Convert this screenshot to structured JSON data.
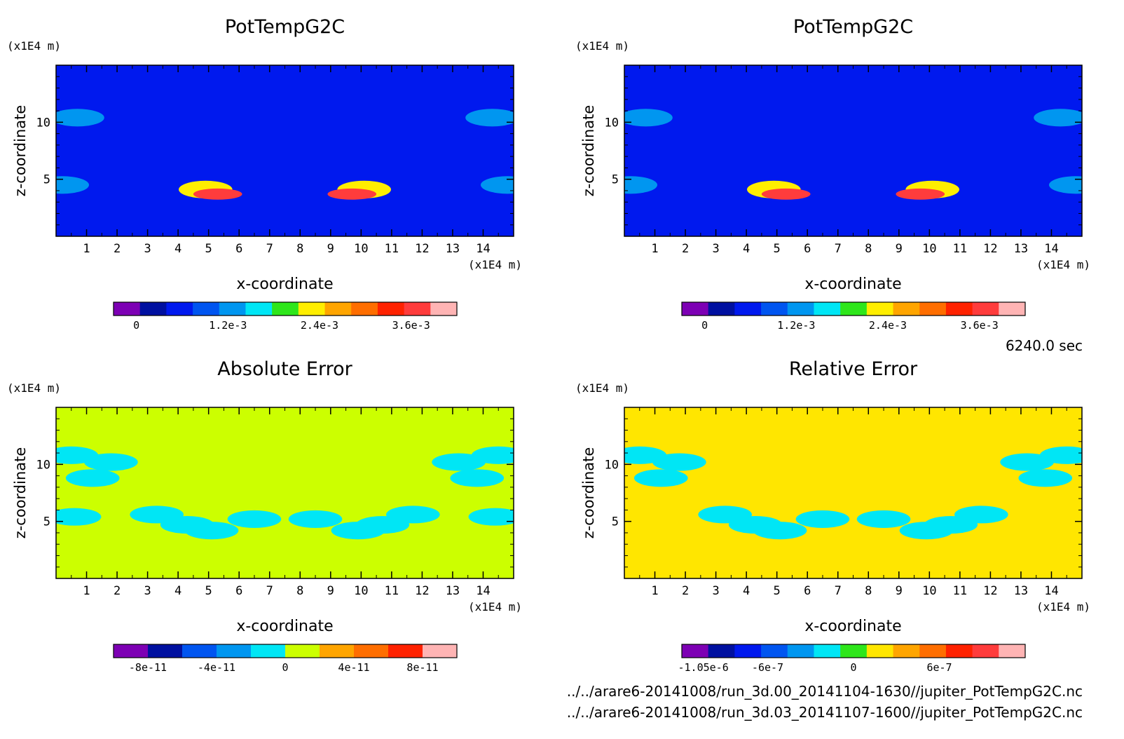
{
  "time_label": "6240.0 sec",
  "files": [
    "../../arare6-20141008/run_3d.00_20141104-1630//jupiter_PotTempG2C.nc",
    "../../arare6-20141008/run_3d.03_20141107-1600//jupiter_PotTempG2C.nc"
  ],
  "chart_data": [
    {
      "type": "heatmap",
      "title": "PotTempG2C",
      "xlabel": "x-coordinate",
      "ylabel": "z-coordinate",
      "x_unit": "(x1E4 m)",
      "y_unit": "(x1E4 m)",
      "xlim": [
        0,
        15
      ],
      "ylim": [
        0,
        15
      ],
      "xticks": [
        1,
        2,
        3,
        4,
        5,
        6,
        7,
        8,
        9,
        10,
        11,
        12,
        13,
        14
      ],
      "yticks": [
        5,
        10
      ],
      "background_color": "#0019ee",
      "blobs": [
        {
          "x": 0.7,
          "z": 10.4,
          "value": 0.0012
        },
        {
          "x": 0.2,
          "z": 4.5,
          "value": 0.0013
        },
        {
          "x": 4.9,
          "z": 4.1,
          "value": 0.0022
        },
        {
          "x": 5.3,
          "z": 3.7,
          "value": 0.0038
        },
        {
          "x": 10.1,
          "z": 4.1,
          "value": 0.0022
        },
        {
          "x": 9.7,
          "z": 3.7,
          "value": 0.0038
        },
        {
          "x": 14.3,
          "z": 10.4,
          "value": 0.0012
        },
        {
          "x": 14.8,
          "z": 4.5,
          "value": 0.0013
        }
      ],
      "colorbar": {
        "colors": [
          "#7d00b4",
          "#0010a0",
          "#0019ee",
          "#0055f0",
          "#0096f0",
          "#00e6f5",
          "#2ee61b",
          "#ffee00",
          "#ffa500",
          "#ff6e00",
          "#ff2200",
          "#ff3c3c",
          "#ffb4b4"
        ],
        "labels": [
          "0",
          "1.2e-3",
          "2.4e-3",
          "3.6e-3"
        ],
        "label_values": [
          0,
          0.0012,
          0.0024,
          0.0036
        ],
        "range": [
          -0.0003,
          0.0042
        ]
      }
    },
    {
      "type": "heatmap",
      "title": "PotTempG2C",
      "xlabel": "x-coordinate",
      "ylabel": "z-coordinate",
      "x_unit": "(x1E4 m)",
      "y_unit": "(x1E4 m)",
      "xlim": [
        0,
        15
      ],
      "ylim": [
        0,
        15
      ],
      "xticks": [
        1,
        2,
        3,
        4,
        5,
        6,
        7,
        8,
        9,
        10,
        11,
        12,
        13,
        14
      ],
      "yticks": [
        5,
        10
      ],
      "background_color": "#0019ee",
      "blobs": [
        {
          "x": 0.7,
          "z": 10.4,
          "value": 0.0012
        },
        {
          "x": 0.2,
          "z": 4.5,
          "value": 0.0013
        },
        {
          "x": 4.9,
          "z": 4.1,
          "value": 0.0022
        },
        {
          "x": 5.3,
          "z": 3.7,
          "value": 0.0038
        },
        {
          "x": 10.1,
          "z": 4.1,
          "value": 0.0022
        },
        {
          "x": 9.7,
          "z": 3.7,
          "value": 0.0038
        },
        {
          "x": 14.3,
          "z": 10.4,
          "value": 0.0012
        },
        {
          "x": 14.8,
          "z": 4.5,
          "value": 0.0013
        }
      ],
      "colorbar": {
        "colors": [
          "#7d00b4",
          "#0010a0",
          "#0019ee",
          "#0055f0",
          "#0096f0",
          "#00e6f5",
          "#2ee61b",
          "#ffee00",
          "#ffa500",
          "#ff6e00",
          "#ff2200",
          "#ff3c3c",
          "#ffb4b4"
        ],
        "labels": [
          "0",
          "1.2e-3",
          "2.4e-3",
          "3.6e-3"
        ],
        "label_values": [
          0,
          0.0012,
          0.0024,
          0.0036
        ],
        "range": [
          -0.0003,
          0.0042
        ]
      }
    },
    {
      "type": "heatmap",
      "title": "Absolute Error",
      "xlabel": "x-coordinate",
      "ylabel": "z-coordinate",
      "x_unit": "(x1E4 m)",
      "y_unit": "(x1E4 m)",
      "xlim": [
        0,
        15
      ],
      "ylim": [
        0,
        15
      ],
      "xticks": [
        1,
        2,
        3,
        4,
        5,
        6,
        7,
        8,
        9,
        10,
        11,
        12,
        13,
        14
      ],
      "yticks": [
        5,
        10
      ],
      "background_color": "#ccff00",
      "blobs": [
        {
          "x": 0.5,
          "z": 10.8,
          "value": -2e-11
        },
        {
          "x": 1.8,
          "z": 10.2,
          "value": -2e-11
        },
        {
          "x": 1.2,
          "z": 8.8,
          "value": -2e-11
        },
        {
          "x": 0.6,
          "z": 5.4,
          "value": -2e-11
        },
        {
          "x": 3.3,
          "z": 5.6,
          "value": -2e-11
        },
        {
          "x": 4.3,
          "z": 4.7,
          "value": -2e-11
        },
        {
          "x": 5.1,
          "z": 4.2,
          "value": -2e-11
        },
        {
          "x": 6.5,
          "z": 5.2,
          "value": -2e-11
        },
        {
          "x": 14.5,
          "z": 10.8,
          "value": -2e-11
        },
        {
          "x": 13.2,
          "z": 10.2,
          "value": -2e-11
        },
        {
          "x": 13.8,
          "z": 8.8,
          "value": -2e-11
        },
        {
          "x": 14.4,
          "z": 5.4,
          "value": -2e-11
        },
        {
          "x": 11.7,
          "z": 5.6,
          "value": -2e-11
        },
        {
          "x": 10.7,
          "z": 4.7,
          "value": -2e-11
        },
        {
          "x": 9.9,
          "z": 4.2,
          "value": -2e-11
        },
        {
          "x": 8.5,
          "z": 5.2,
          "value": -2e-11
        }
      ],
      "colorbar": {
        "colors": [
          "#7d00b4",
          "#0010a0",
          "#0055f0",
          "#0096f0",
          "#00e6f5",
          "#ccff00",
          "#ffa500",
          "#ff6e00",
          "#ff2200",
          "#ffb4b4"
        ],
        "labels": [
          "-8e-11",
          "-4e-11",
          "0",
          "4e-11",
          "8e-11"
        ],
        "label_values": [
          -8e-11,
          -4e-11,
          0,
          4e-11,
          8e-11
        ],
        "range": [
          -1e-10,
          1e-10
        ]
      }
    },
    {
      "type": "heatmap",
      "title": "Relative Error",
      "xlabel": "x-coordinate",
      "ylabel": "z-coordinate",
      "x_unit": "(x1E4 m)",
      "y_unit": "(x1E4 m)",
      "xlim": [
        0,
        15
      ],
      "ylim": [
        0,
        15
      ],
      "xticks": [
        1,
        2,
        3,
        4,
        5,
        6,
        7,
        8,
        9,
        10,
        11,
        12,
        13,
        14
      ],
      "yticks": [
        5,
        10
      ],
      "background_color": "#ffe600",
      "blobs": [
        {
          "x": 0.5,
          "z": 10.8,
          "value": -1e-07
        },
        {
          "x": 1.8,
          "z": 10.2,
          "value": -1e-07
        },
        {
          "x": 1.2,
          "z": 8.8,
          "value": -1e-07
        },
        {
          "x": 3.3,
          "z": 5.6,
          "value": -1e-07
        },
        {
          "x": 4.3,
          "z": 4.7,
          "value": -1e-07
        },
        {
          "x": 5.1,
          "z": 4.2,
          "value": -1e-07
        },
        {
          "x": 6.5,
          "z": 5.2,
          "value": -1e-07
        },
        {
          "x": 14.5,
          "z": 10.8,
          "value": -1e-07
        },
        {
          "x": 13.2,
          "z": 10.2,
          "value": -1e-07
        },
        {
          "x": 13.8,
          "z": 8.8,
          "value": -1e-07
        },
        {
          "x": 11.7,
          "z": 5.6,
          "value": -1e-07
        },
        {
          "x": 10.7,
          "z": 4.7,
          "value": -1e-07
        },
        {
          "x": 9.9,
          "z": 4.2,
          "value": -1e-07
        },
        {
          "x": 8.5,
          "z": 5.2,
          "value": -1e-07
        }
      ],
      "colorbar": {
        "colors": [
          "#7d00b4",
          "#0010a0",
          "#0019ee",
          "#0055f0",
          "#0096f0",
          "#00e6f5",
          "#2ee61b",
          "#ffe600",
          "#ffa500",
          "#ff6e00",
          "#ff2200",
          "#ff3c3c",
          "#ffb4b4"
        ],
        "labels": [
          "-1.05e-6",
          "-6e-7",
          "0",
          "6e-7"
        ],
        "label_values": [
          -1.05e-06,
          -6e-07,
          0,
          6e-07
        ],
        "range": [
          -1.2e-06,
          1.2e-06
        ]
      }
    }
  ]
}
